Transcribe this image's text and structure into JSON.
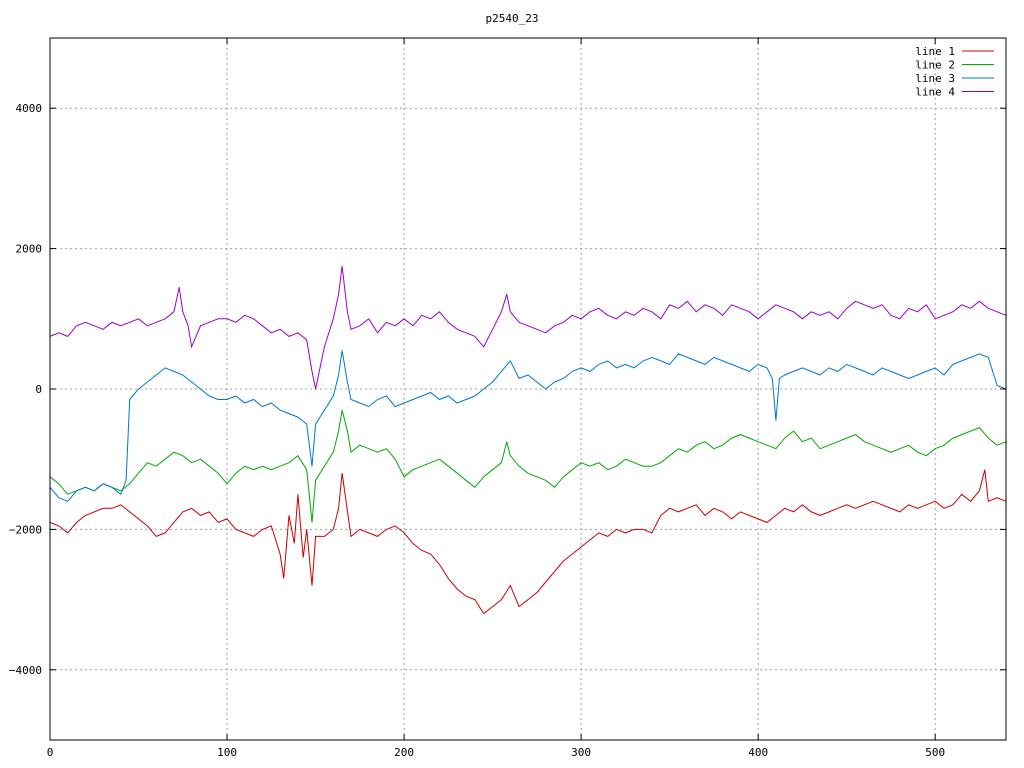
{
  "chart_data": {
    "type": "line",
    "title": "p2540_23",
    "xlabel": "",
    "ylabel": "",
    "xlim": [
      0,
      540
    ],
    "ylim": [
      -5000,
      5000
    ],
    "x_ticks": [
      0,
      100,
      200,
      300,
      400,
      500
    ],
    "y_ticks": [
      -4000,
      -2000,
      0,
      2000,
      4000
    ],
    "x_tick_labels": [
      "0",
      "100",
      "200",
      "300",
      "400",
      "500"
    ],
    "y_tick_labels": [
      "−4000",
      "−2000",
      "0",
      "2000",
      "4000"
    ],
    "grid": true,
    "legend_position": "top-right",
    "series": [
      {
        "name": "line 1",
        "color": "#cc0000",
        "x": [
          0,
          5,
          10,
          15,
          20,
          25,
          30,
          35,
          40,
          45,
          50,
          55,
          60,
          65,
          70,
          75,
          80,
          85,
          90,
          95,
          100,
          105,
          110,
          115,
          120,
          125,
          130,
          132,
          135,
          138,
          140,
          143,
          145,
          148,
          150,
          155,
          160,
          163,
          165,
          170,
          175,
          180,
          185,
          190,
          195,
          200,
          205,
          210,
          215,
          220,
          225,
          230,
          235,
          240,
          245,
          250,
          255,
          260,
          265,
          270,
          275,
          280,
          285,
          290,
          295,
          300,
          305,
          310,
          315,
          320,
          325,
          330,
          335,
          340,
          345,
          350,
          355,
          360,
          365,
          370,
          375,
          380,
          385,
          390,
          395,
          400,
          405,
          410,
          415,
          420,
          425,
          430,
          435,
          440,
          445,
          450,
          455,
          460,
          465,
          470,
          475,
          480,
          485,
          490,
          495,
          500,
          505,
          510,
          515,
          520,
          525,
          528,
          530,
          535,
          540
        ],
        "y": [
          -1900,
          -1950,
          -2050,
          -1900,
          -1800,
          -1750,
          -1700,
          -1700,
          -1650,
          -1750,
          -1850,
          -1950,
          -2100,
          -2050,
          -1900,
          -1750,
          -1700,
          -1800,
          -1750,
          -1900,
          -1850,
          -2000,
          -2050,
          -2100,
          -2000,
          -1950,
          -2350,
          -2700,
          -1800,
          -2200,
          -1500,
          -2400,
          -2000,
          -2800,
          -2100,
          -2100,
          -2000,
          -1700,
          -1200,
          -2100,
          -2000,
          -2050,
          -2100,
          -2000,
          -1950,
          -2050,
          -2200,
          -2300,
          -2350,
          -2500,
          -2700,
          -2850,
          -2950,
          -3000,
          -3200,
          -3100,
          -3000,
          -2800,
          -3100,
          -3000,
          -2900,
          -2750,
          -2600,
          -2450,
          -2350,
          -2250,
          -2150,
          -2050,
          -2100,
          -2000,
          -2050,
          -2000,
          -2000,
          -2050,
          -1800,
          -1700,
          -1750,
          -1700,
          -1650,
          -1800,
          -1700,
          -1750,
          -1850,
          -1750,
          -1800,
          -1850,
          -1900,
          -1800,
          -1700,
          -1750,
          -1650,
          -1750,
          -1800,
          -1750,
          -1700,
          -1650,
          -1700,
          -1650,
          -1600,
          -1650,
          -1700,
          -1750,
          -1650,
          -1700,
          -1650,
          -1600,
          -1700,
          -1650,
          -1500,
          -1600,
          -1450,
          -1150,
          -1600,
          -1550,
          -1600
        ]
      },
      {
        "name": "line 2",
        "color": "#00aa00",
        "x": [
          0,
          5,
          10,
          15,
          20,
          25,
          30,
          35,
          40,
          45,
          50,
          55,
          60,
          65,
          70,
          75,
          80,
          85,
          90,
          95,
          100,
          105,
          110,
          115,
          120,
          125,
          130,
          135,
          140,
          145,
          148,
          150,
          155,
          160,
          163,
          165,
          168,
          170,
          175,
          180,
          185,
          190,
          195,
          200,
          205,
          210,
          215,
          220,
          225,
          230,
          235,
          240,
          245,
          250,
          255,
          258,
          260,
          265,
          270,
          275,
          280,
          285,
          290,
          295,
          300,
          305,
          310,
          315,
          320,
          325,
          330,
          335,
          340,
          345,
          350,
          355,
          360,
          365,
          370,
          375,
          380,
          385,
          390,
          395,
          400,
          405,
          410,
          415,
          420,
          425,
          430,
          435,
          440,
          445,
          450,
          455,
          460,
          465,
          470,
          475,
          480,
          485,
          490,
          495,
          500,
          505,
          510,
          515,
          520,
          525,
          530,
          535,
          540
        ],
        "y": [
          -1250,
          -1350,
          -1500,
          -1450,
          -1400,
          -1450,
          -1350,
          -1400,
          -1450,
          -1350,
          -1200,
          -1050,
          -1100,
          -1000,
          -900,
          -950,
          -1050,
          -1000,
          -1100,
          -1200,
          -1350,
          -1200,
          -1100,
          -1150,
          -1100,
          -1150,
          -1100,
          -1050,
          -950,
          -1150,
          -1900,
          -1300,
          -1100,
          -900,
          -600,
          -300,
          -600,
          -900,
          -800,
          -850,
          -900,
          -850,
          -1000,
          -1250,
          -1150,
          -1100,
          -1050,
          -1000,
          -1100,
          -1200,
          -1300,
          -1400,
          -1250,
          -1150,
          -1050,
          -750,
          -950,
          -1100,
          -1200,
          -1250,
          -1300,
          -1400,
          -1250,
          -1150,
          -1050,
          -1100,
          -1050,
          -1150,
          -1100,
          -1000,
          -1050,
          -1100,
          -1100,
          -1050,
          -950,
          -850,
          -900,
          -800,
          -750,
          -850,
          -800,
          -700,
          -650,
          -700,
          -750,
          -800,
          -850,
          -700,
          -600,
          -750,
          -700,
          -850,
          -800,
          -750,
          -700,
          -650,
          -750,
          -800,
          -850,
          -900,
          -850,
          -800,
          -900,
          -950,
          -850,
          -800,
          -700,
          -650,
          -600,
          -550,
          -700,
          -800,
          -750
        ]
      },
      {
        "name": "line 3",
        "color": "#0077cc",
        "x": [
          0,
          5,
          10,
          15,
          20,
          25,
          30,
          35,
          40,
          43,
          45,
          50,
          55,
          60,
          65,
          70,
          75,
          80,
          85,
          90,
          95,
          100,
          105,
          110,
          115,
          120,
          125,
          130,
          135,
          140,
          145,
          148,
          150,
          155,
          160,
          163,
          165,
          168,
          170,
          175,
          180,
          185,
          190,
          195,
          200,
          205,
          210,
          215,
          220,
          225,
          230,
          235,
          240,
          245,
          250,
          255,
          260,
          265,
          270,
          275,
          280,
          285,
          290,
          295,
          300,
          305,
          310,
          315,
          320,
          325,
          330,
          335,
          340,
          345,
          350,
          355,
          360,
          365,
          370,
          375,
          380,
          385,
          390,
          395,
          400,
          405,
          408,
          410,
          412,
          415,
          420,
          425,
          430,
          435,
          440,
          445,
          450,
          455,
          460,
          465,
          470,
          475,
          480,
          485,
          490,
          495,
          500,
          505,
          510,
          515,
          520,
          525,
          530,
          535,
          540
        ],
        "y": [
          -1400,
          -1550,
          -1600,
          -1450,
          -1400,
          -1450,
          -1350,
          -1400,
          -1500,
          -1300,
          -150,
          0,
          100,
          200,
          300,
          250,
          200,
          100,
          0,
          -100,
          -150,
          -150,
          -100,
          -200,
          -150,
          -250,
          -200,
          -300,
          -350,
          -400,
          -500,
          -1100,
          -500,
          -300,
          -100,
          200,
          550,
          100,
          -150,
          -200,
          -250,
          -150,
          -100,
          -250,
          -200,
          -150,
          -100,
          -50,
          -150,
          -100,
          -200,
          -150,
          -100,
          0,
          100,
          250,
          400,
          150,
          200,
          100,
          0,
          100,
          150,
          250,
          300,
          250,
          350,
          400,
          300,
          350,
          300,
          400,
          450,
          400,
          350,
          500,
          450,
          400,
          350,
          450,
          400,
          350,
          300,
          250,
          350,
          300,
          150,
          -450,
          150,
          200,
          250,
          300,
          250,
          200,
          300,
          250,
          350,
          300,
          250,
          200,
          300,
          250,
          200,
          150,
          200,
          250,
          300,
          200,
          350,
          400,
          450,
          500,
          450,
          50,
          0
        ]
      },
      {
        "name": "line 4",
        "color": "#9900cc",
        "x": [
          0,
          5,
          10,
          15,
          20,
          25,
          30,
          35,
          40,
          45,
          50,
          55,
          60,
          65,
          70,
          73,
          75,
          78,
          80,
          85,
          90,
          95,
          100,
          105,
          110,
          115,
          120,
          125,
          130,
          135,
          140,
          145,
          148,
          150,
          155,
          160,
          163,
          165,
          168,
          170,
          175,
          180,
          185,
          190,
          195,
          200,
          205,
          210,
          215,
          220,
          225,
          230,
          235,
          240,
          245,
          250,
          255,
          258,
          260,
          265,
          270,
          275,
          280,
          285,
          290,
          295,
          300,
          305,
          310,
          315,
          320,
          325,
          330,
          335,
          340,
          345,
          350,
          355,
          360,
          365,
          370,
          375,
          380,
          385,
          390,
          395,
          400,
          405,
          410,
          415,
          420,
          425,
          430,
          435,
          440,
          445,
          450,
          455,
          460,
          465,
          470,
          475,
          480,
          485,
          490,
          495,
          500,
          505,
          510,
          515,
          520,
          525,
          530,
          535,
          540
        ],
        "y": [
          750,
          800,
          750,
          900,
          950,
          900,
          850,
          950,
          900,
          950,
          1000,
          900,
          950,
          1000,
          1100,
          1450,
          1100,
          900,
          600,
          900,
          950,
          1000,
          1000,
          950,
          1050,
          1000,
          900,
          800,
          850,
          750,
          800,
          700,
          250,
          0,
          600,
          1000,
          1350,
          1750,
          1100,
          850,
          900,
          1000,
          800,
          950,
          900,
          1000,
          900,
          1050,
          1000,
          1100,
          950,
          850,
          800,
          750,
          600,
          850,
          1100,
          1350,
          1100,
          950,
          900,
          850,
          800,
          900,
          950,
          1050,
          1000,
          1100,
          1150,
          1050,
          1000,
          1100,
          1050,
          1150,
          1100,
          1000,
          1200,
          1150,
          1250,
          1100,
          1200,
          1150,
          1050,
          1200,
          1150,
          1100,
          1000,
          1100,
          1200,
          1150,
          1100,
          1000,
          1100,
          1050,
          1100,
          1000,
          1150,
          1250,
          1200,
          1150,
          1200,
          1050,
          1000,
          1150,
          1100,
          1200,
          1000,
          1050,
          1100,
          1200,
          1150,
          1250,
          1150,
          1100,
          1050
        ]
      }
    ]
  }
}
